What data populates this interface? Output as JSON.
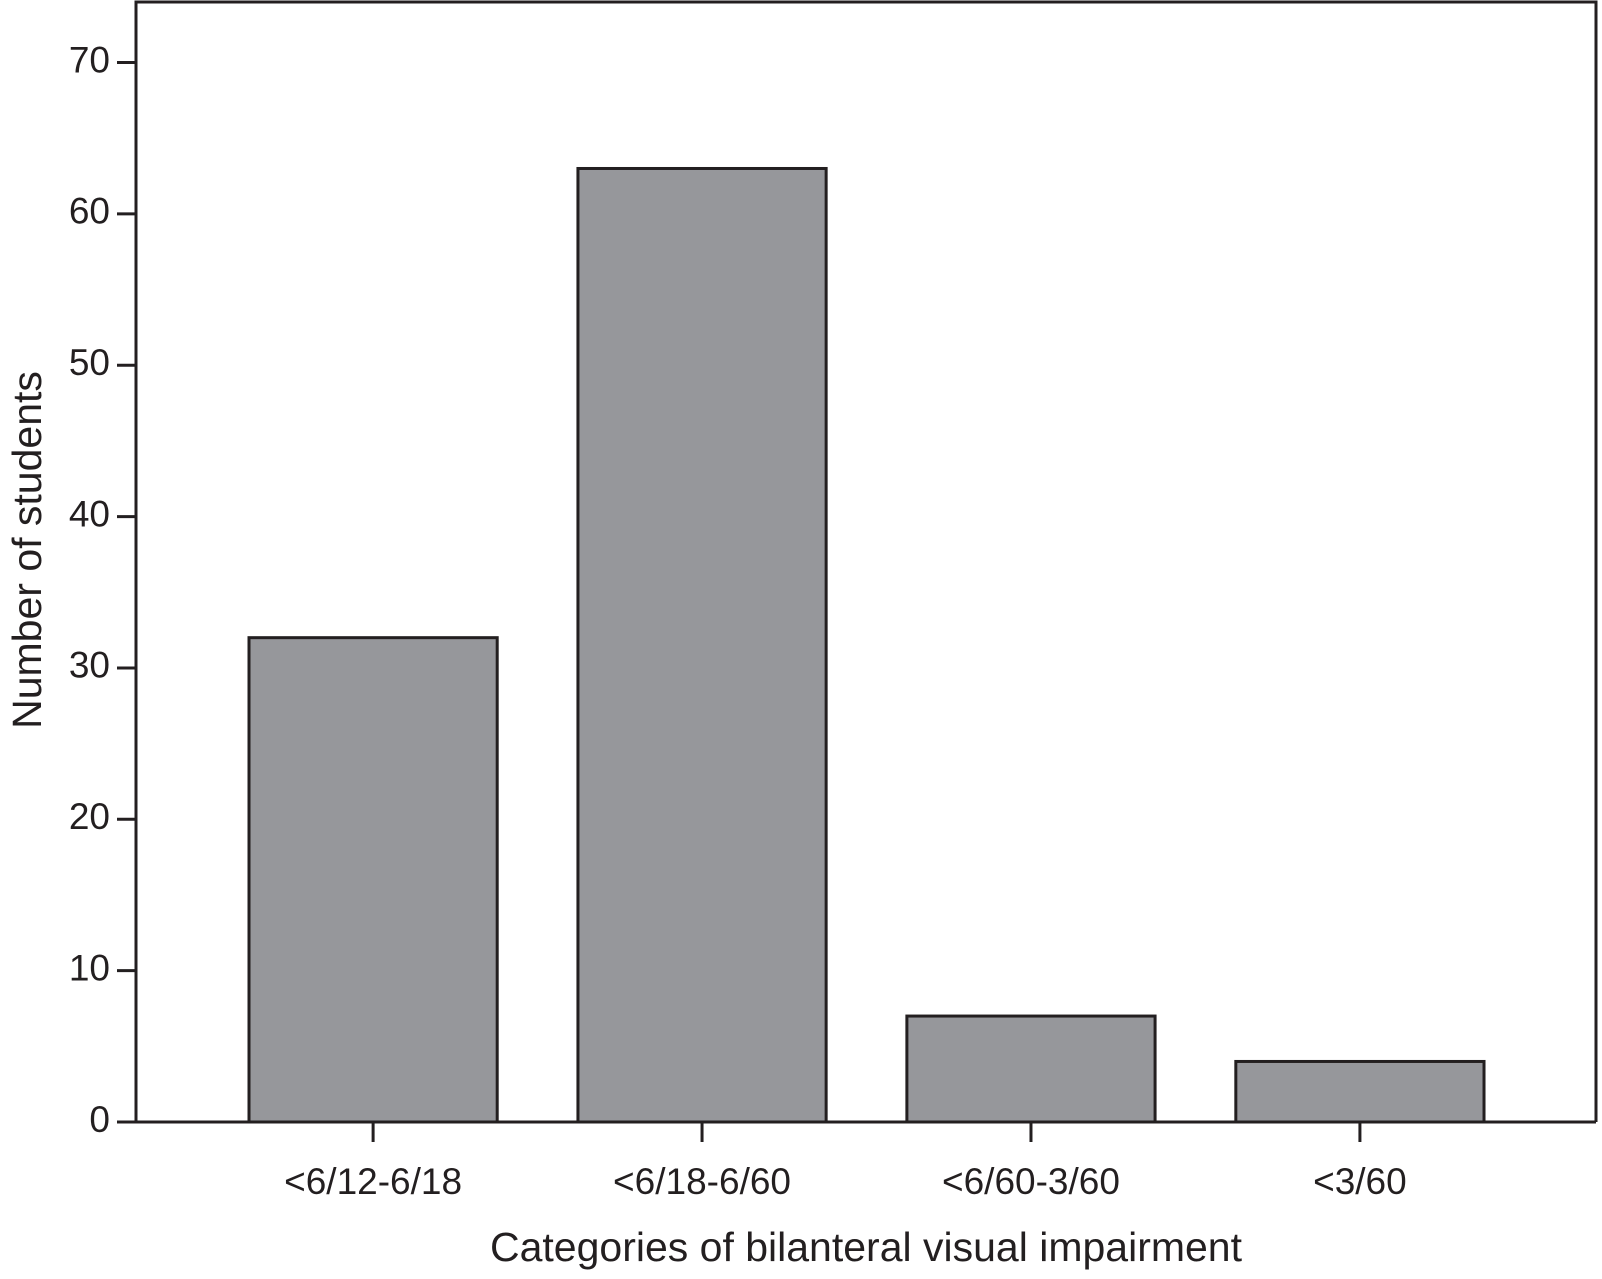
{
  "chart_data": {
    "type": "bar",
    "categories": [
      "<6/12-6/18",
      "<6/18-6/60",
      "<6/60-3/60",
      "<3/60"
    ],
    "values": [
      32,
      63,
      7,
      4
    ],
    "color": "#96979b",
    "x_label": "Categories of bilanteral visual impairment",
    "y_label": "Number of students",
    "ylim": [
      0,
      74
    ],
    "yticks": [
      0,
      10,
      20,
      30,
      40,
      50,
      60,
      70
    ],
    "grid": false
  }
}
